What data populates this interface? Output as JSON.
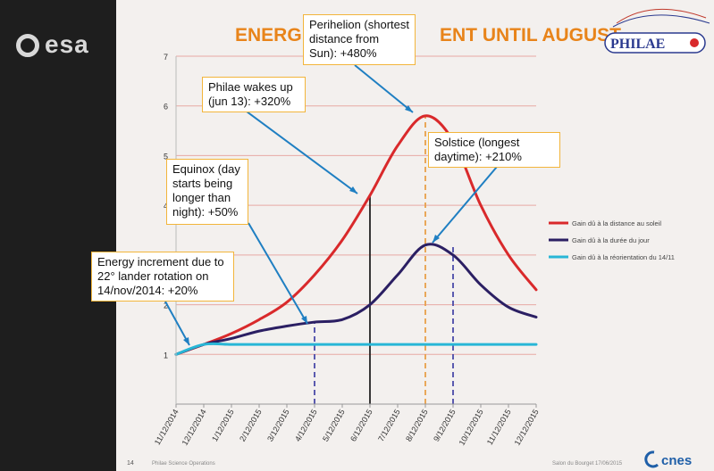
{
  "branding": {
    "agency": "esa",
    "mission": "PHILAE",
    "partner": "cnes"
  },
  "slide": {
    "title": "ENERG",
    "title_end": "ENT UNTIL AUGUST",
    "slide_number": "14",
    "footer_left": "Philae Science Operations",
    "footer_right": "Salon du Bourget   17/06/2015"
  },
  "colors": {
    "sun_distance": "#d9292b",
    "day_length": "#2b1f63",
    "reorientation": "#28b6d6",
    "accent_title": "#e8841a",
    "callout_border": "#f2b53b",
    "arrow": "#1f7fc2"
  },
  "chart_data": {
    "type": "line",
    "xlabel": "",
    "ylabel": "",
    "ylim": [
      0,
      7
    ],
    "yticks": [
      1,
      2,
      3,
      4,
      5,
      6,
      7
    ],
    "x": [
      "11/12/2014",
      "12/12/2014",
      "1/12/2015",
      "2/12/2015",
      "3/12/2015",
      "4/12/2015",
      "5/12/2015",
      "6/12/2015",
      "7/12/2015",
      "8/12/2015",
      "9/12/2015",
      "10/12/2015",
      "11/12/2015",
      "12/12/2015"
    ],
    "grid": "horizontal",
    "legend_placement": "right",
    "series": [
      {
        "name": "Gain dû à la distance au soleil",
        "color": "#d9292b",
        "values": [
          1.0,
          1.2,
          1.42,
          1.7,
          2.05,
          2.6,
          3.3,
          4.2,
          5.2,
          5.8,
          5.3,
          4.0,
          3.0,
          2.3
        ]
      },
      {
        "name": "Gain dû à la durée du jour",
        "color": "#2b1f63",
        "values": [
          1.0,
          1.2,
          1.32,
          1.47,
          1.57,
          1.65,
          1.7,
          2.0,
          2.6,
          3.2,
          3.0,
          2.4,
          1.95,
          1.75
        ]
      },
      {
        "name": "Gain dû à la réorientation du 14/11",
        "color": "#28b6d6",
        "values": [
          1.0,
          1.2,
          1.2,
          1.2,
          1.2,
          1.2,
          1.2,
          1.2,
          1.2,
          1.2,
          1.2,
          1.2,
          1.2,
          1.2
        ]
      }
    ],
    "markers": [
      {
        "x": 5,
        "color": "#4a4aa8",
        "style": "dashed"
      },
      {
        "x": 7,
        "color": "#222222",
        "style": "solid"
      },
      {
        "x": 9,
        "color": "#e8a04a",
        "style": "dashed"
      },
      {
        "x": 10,
        "color": "#4a4aa8",
        "style": "dashed"
      }
    ],
    "annotations": [
      "Energy increment due to 22° lander rotation on 14/nov/2014: +20%",
      "Equinox (day starts being longer than night): +50%",
      "Philae wakes up (jun 13): +320%",
      "Perihelion (shortest distance from Sun): +480%",
      "Solstice (longest daytime): +210%"
    ]
  }
}
